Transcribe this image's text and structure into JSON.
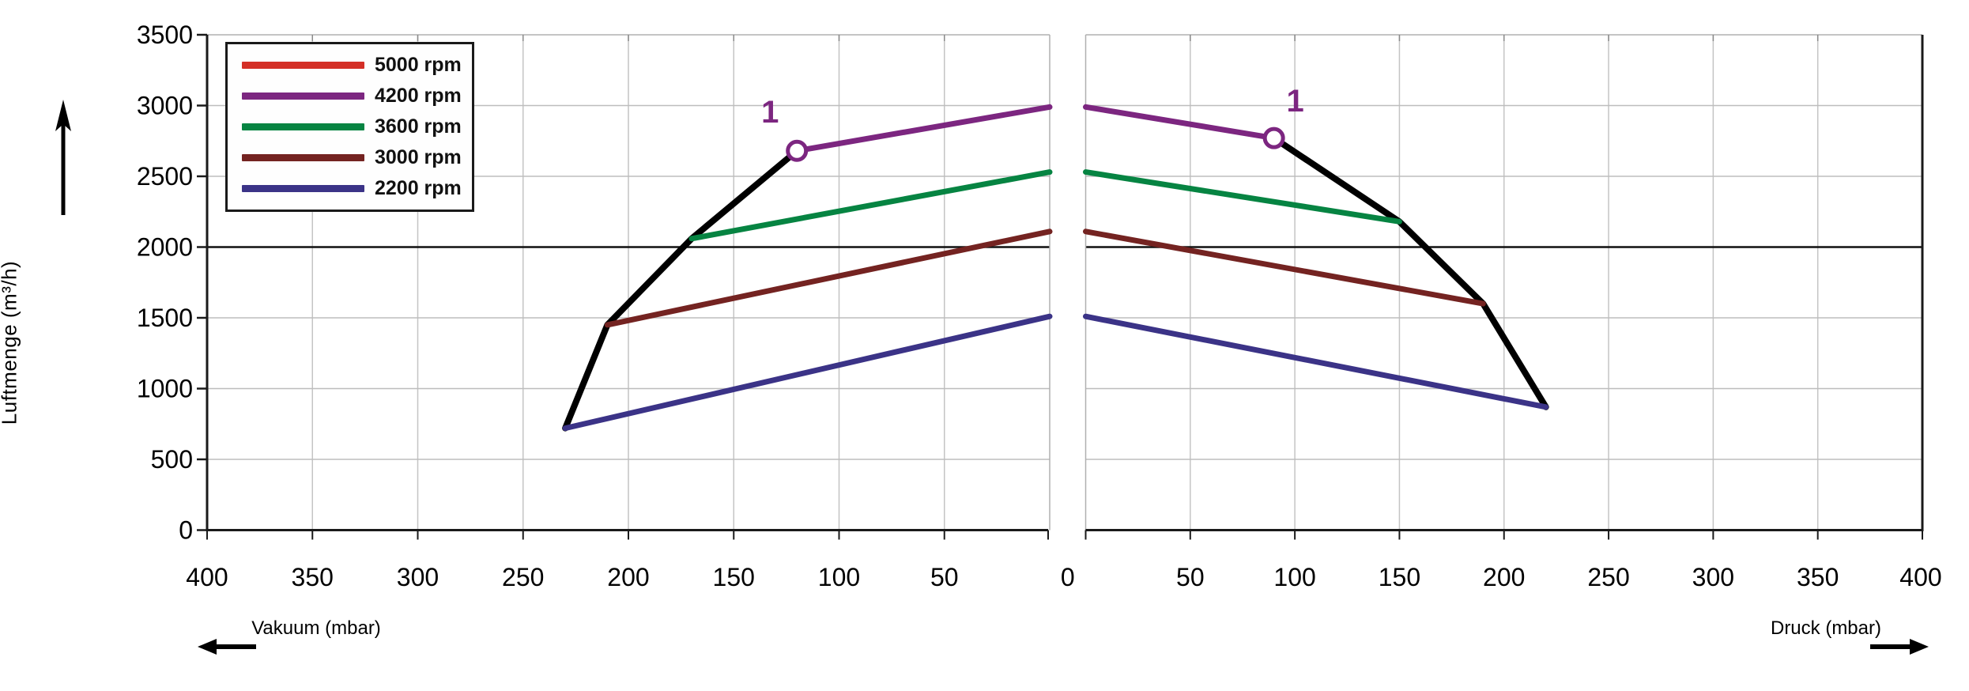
{
  "axes": {
    "y": {
      "title": "Luftmenge (m³/h)",
      "ticks": [
        0,
        500,
        1000,
        1500,
        2000,
        2500,
        3000,
        3500
      ],
      "range": [
        0,
        3500
      ],
      "highlight_gridline": 2000
    },
    "x_left": {
      "title": "Vakuum (mbar)",
      "ticks": [
        400,
        350,
        300,
        250,
        200,
        150,
        100,
        50
      ],
      "range": [
        400,
        0
      ],
      "unit": "mbar"
    },
    "x_right": {
      "title": "Druck (mbar)",
      "ticks": [
        50,
        100,
        150,
        200,
        250,
        300,
        350,
        400
      ],
      "range": [
        0,
        400
      ],
      "unit": "mbar"
    },
    "center_zero_label": "0"
  },
  "legend": {
    "items": [
      {
        "label": "5000 rpm",
        "color": "#d42f26"
      },
      {
        "label": "4200 rpm",
        "color": "#7c2680"
      },
      {
        "label": "3600 rpm",
        "color": "#068442"
      },
      {
        "label": "3000 rpm",
        "color": "#742321"
      },
      {
        "label": "2200 rpm",
        "color": "#3b3387"
      }
    ]
  },
  "annotations": [
    {
      "text": "1",
      "panel": "vacuum"
    },
    {
      "text": "1",
      "panel": "pressure"
    }
  ],
  "colors": {
    "grid_light": "#c4c4c4",
    "grid_highlight": "#111111",
    "axis": "#1a1a1a",
    "inner_edge": "#b0b0b0",
    "annotation": "#7c2680"
  },
  "chart_data": {
    "type": "line",
    "title": "",
    "ylabel": "Luftmenge (m³/h)",
    "ylim": [
      0,
      3500
    ],
    "grid": true,
    "legend_position": "top-left",
    "panels": [
      {
        "id": "vacuum",
        "xlabel": "Vakuum (mbar)",
        "xlim": [
          400,
          0
        ],
        "series": [
          {
            "name": "envelope",
            "color": "#000000",
            "points": [
              [
                230,
                720
              ],
              [
                210,
                1450
              ],
              [
                170,
                2060
              ],
              [
                120,
                2680
              ]
            ]
          },
          {
            "name": "2200 rpm",
            "color": "#3b3387",
            "points": [
              [
                230,
                720
              ],
              [
                0,
                1510
              ]
            ]
          },
          {
            "name": "3000 rpm",
            "color": "#742321",
            "points": [
              [
                210,
                1450
              ],
              [
                0,
                2110
              ]
            ]
          },
          {
            "name": "3600 rpm",
            "color": "#068442",
            "points": [
              [
                170,
                2060
              ],
              [
                0,
                2530
              ]
            ]
          },
          {
            "name": "4200 rpm",
            "color": "#7c2680",
            "points": [
              [
                120,
                2680
              ],
              [
                0,
                2990
              ]
            ],
            "marker": {
              "point": [
                120,
                2680
              ],
              "label": "1"
            }
          }
        ]
      },
      {
        "id": "pressure",
        "xlabel": "Druck (mbar)",
        "xlim": [
          0,
          400
        ],
        "series": [
          {
            "name": "envelope",
            "color": "#000000",
            "points": [
              [
                90,
                2770
              ],
              [
                150,
                2180
              ],
              [
                190,
                1600
              ],
              [
                220,
                870
              ]
            ]
          },
          {
            "name": "2200 rpm",
            "color": "#3b3387",
            "points": [
              [
                0,
                1510
              ],
              [
                220,
                870
              ]
            ]
          },
          {
            "name": "3000 rpm",
            "color": "#742321",
            "points": [
              [
                0,
                2110
              ],
              [
                190,
                1600
              ]
            ]
          },
          {
            "name": "3600 rpm",
            "color": "#068442",
            "points": [
              [
                0,
                2530
              ],
              [
                150,
                2180
              ]
            ]
          },
          {
            "name": "4200 rpm",
            "color": "#7c2680",
            "points": [
              [
                0,
                2990
              ],
              [
                90,
                2770
              ]
            ],
            "marker": {
              "point": [
                90,
                2770
              ],
              "label": "1"
            }
          }
        ]
      }
    ]
  }
}
